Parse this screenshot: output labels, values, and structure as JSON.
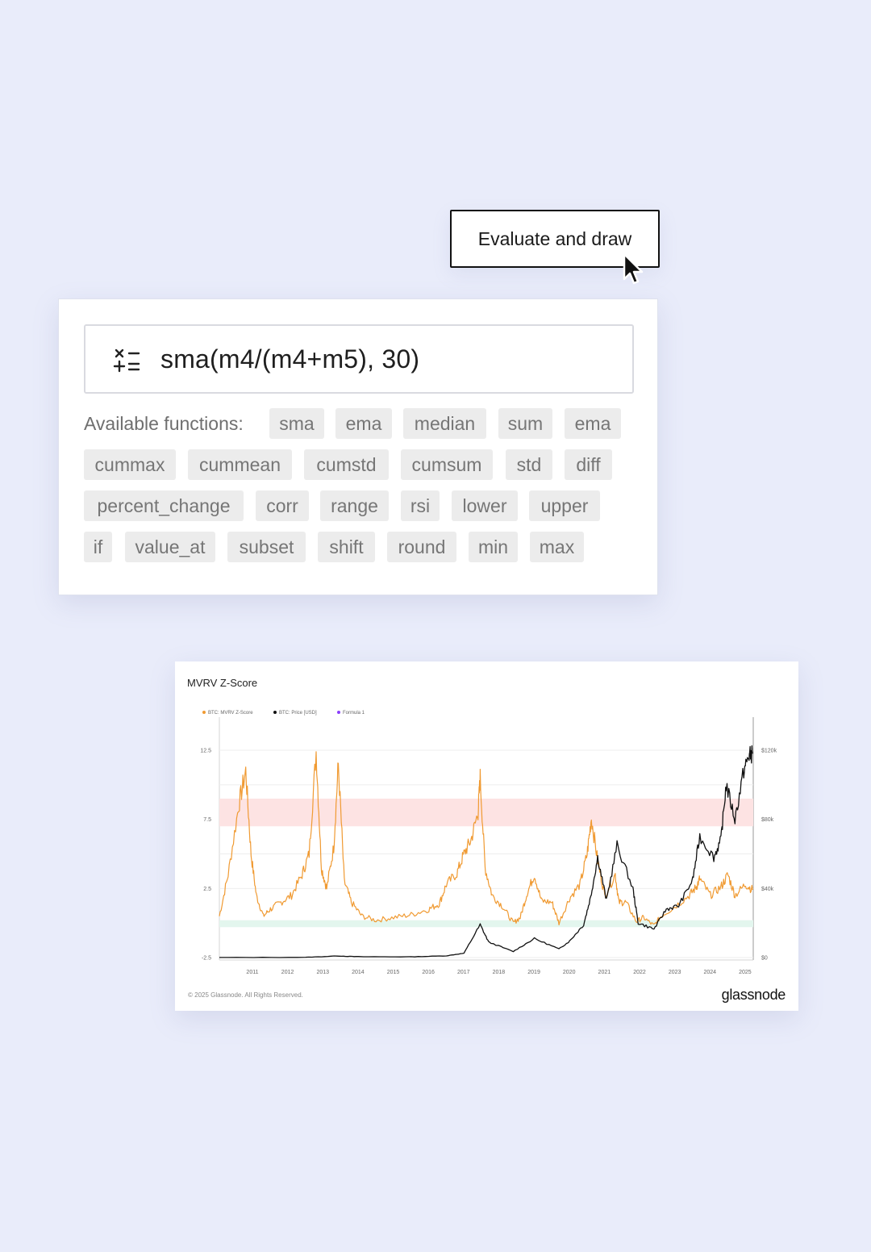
{
  "eval_button": {
    "label": "Evaluate and draw"
  },
  "editor": {
    "formula": "sma(m4/(m4+m5), 30)",
    "functions_label": "Available functions:",
    "functions": [
      "sma",
      "ema",
      "median",
      "sum",
      "ema",
      "cummax",
      "cummean",
      "cumstd",
      "cumsum",
      "std",
      "diff",
      "percent_change",
      "corr",
      "range",
      "rsi",
      "lower",
      "upper",
      "if",
      "value_at",
      "subset",
      "shift",
      "round",
      "min",
      "max"
    ]
  },
  "chart_card": {
    "title": "MVRV Z-Score",
    "copyright": "© 2025 Glassnode. All Rights Reserved.",
    "brand": "glassnode"
  },
  "colors": {
    "zscore": "#f09a32",
    "price": "#111111",
    "formula": "#8a3ffc",
    "red_band": "#fde3e3",
    "green_band": "#e3f6ee"
  },
  "chart_data": {
    "type": "line",
    "title": "MVRV Z-Score",
    "legend": [
      "BTC: MVRV Z-Score",
      "BTC: Price [USD]",
      "Formula 1"
    ],
    "legend_position": "top-left",
    "x_ticks": [
      "2011",
      "2012",
      "2013",
      "2014",
      "2015",
      "2016",
      "2017",
      "2018",
      "2019",
      "2020",
      "2021",
      "2022",
      "2023",
      "2024",
      "2025"
    ],
    "y_left_ticks": [
      "12.5",
      "7.5",
      "2.5",
      "-2.5"
    ],
    "y_right_ticks": [
      "$120k",
      "$80k",
      "$40k",
      "$0"
    ],
    "ylim_left": [
      -2.5,
      12.5
    ],
    "ylim_right": [
      0,
      120000
    ],
    "bands": [
      {
        "axis": "left",
        "from": 7,
        "to": 9,
        "color": "red"
      },
      {
        "axis": "left",
        "from": -0.3,
        "to": 0.2,
        "color": "green"
      }
    ],
    "grid": true,
    "series": [
      {
        "name": "BTC: MVRV Z-Score",
        "axis": "left",
        "x": [
          2010.55,
          2010.8,
          2011.1,
          2011.3,
          2011.45,
          2011.6,
          2011.8,
          2012.0,
          2012.3,
          2012.6,
          2012.9,
          2013.1,
          2013.3,
          2013.45,
          2013.6,
          2013.8,
          2013.93,
          2014.1,
          2014.3,
          2014.6,
          2015.0,
          2015.5,
          2016.0,
          2016.5,
          2016.8,
          2017.0,
          2017.3,
          2017.5,
          2017.7,
          2017.9,
          2017.96,
          2018.1,
          2018.3,
          2018.6,
          2018.9,
          2019.1,
          2019.3,
          2019.5,
          2019.7,
          2020.0,
          2020.2,
          2020.5,
          2020.8,
          2021.0,
          2021.12,
          2021.3,
          2021.5,
          2021.8,
          2021.9,
          2022.1,
          2022.4,
          2022.6,
          2022.9,
          2023.1,
          2023.5,
          2023.9,
          2024.1,
          2024.2,
          2024.5,
          2024.8,
          2025.0,
          2025.2,
          2025.5,
          2025.7
        ],
        "y": [
          0.5,
          3.5,
          8.5,
          11.0,
          5.0,
          2.0,
          0.5,
          1.0,
          1.5,
          2.0,
          3.5,
          5.0,
          12.4,
          4.0,
          2.5,
          5.5,
          11.5,
          3.0,
          1.5,
          0.5,
          0.2,
          0.4,
          0.6,
          1.0,
          1.4,
          2.8,
          3.6,
          5.0,
          6.0,
          8.0,
          10.5,
          4.0,
          2.0,
          1.2,
          0.0,
          0.4,
          2.2,
          3.5,
          1.6,
          1.5,
          0.0,
          1.8,
          2.8,
          5.0,
          7.6,
          4.5,
          2.0,
          3.5,
          1.5,
          1.5,
          0.1,
          0.4,
          -0.2,
          0.5,
          1.2,
          2.0,
          2.6,
          3.2,
          2.0,
          2.6,
          3.5,
          2.0,
          2.8,
          2.4
        ]
      },
      {
        "name": "BTC: Price [USD]",
        "axis": "right",
        "x": [
          2010.55,
          2013.0,
          2013.9,
          2014.5,
          2016.0,
          2017.0,
          2017.5,
          2017.96,
          2018.2,
          2018.9,
          2019.5,
          2020.2,
          2020.5,
          2020.9,
          2021.1,
          2021.3,
          2021.55,
          2021.85,
          2022.3,
          2022.45,
          2022.9,
          2023.25,
          2023.6,
          2024.0,
          2024.2,
          2024.6,
          2024.8,
          2024.95,
          2025.2,
          2025.45,
          2025.6,
          2025.7
        ],
        "y": [
          0,
          150,
          900,
          500,
          430,
          1000,
          2500,
          19000,
          9000,
          3500,
          11000,
          5000,
          9500,
          19000,
          35000,
          58000,
          33000,
          65000,
          40000,
          20000,
          16500,
          28000,
          30000,
          45000,
          70000,
          58000,
          68000,
          100000,
          80000,
          108000,
          117000,
          118000
        ]
      }
    ]
  }
}
